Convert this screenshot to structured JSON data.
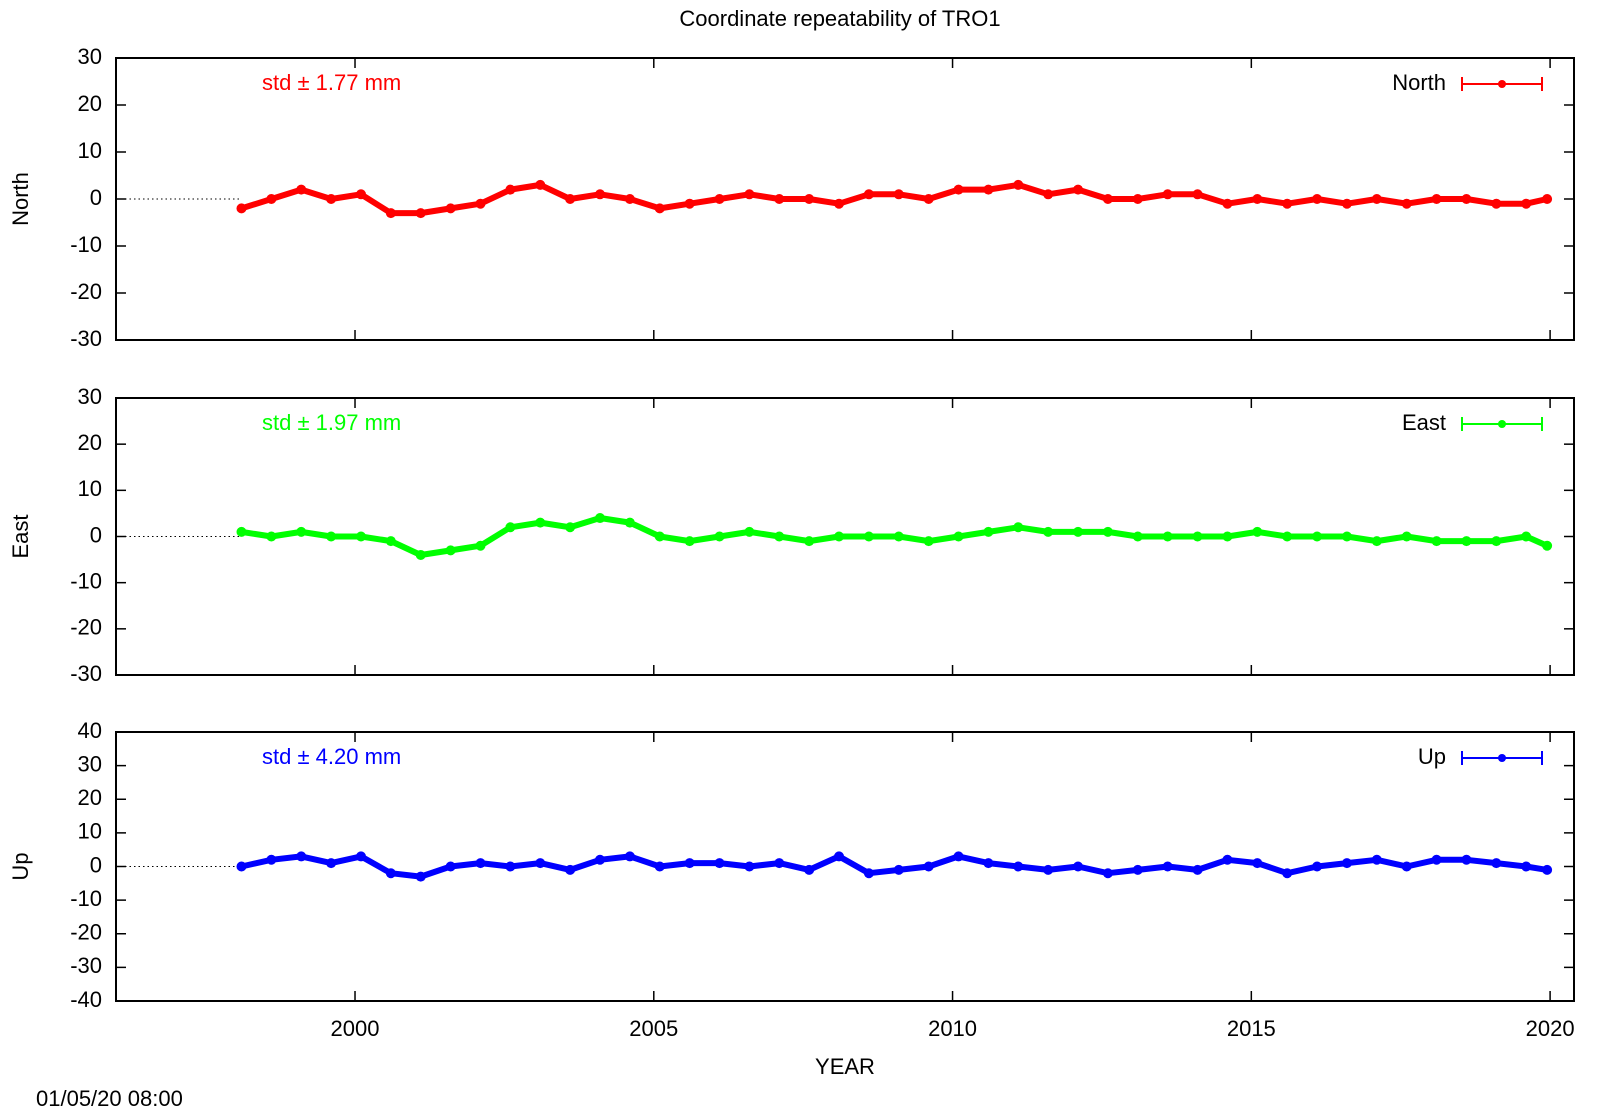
{
  "chart_data": [
    {
      "type": "line",
      "title": "Coordinate repeatability of TRO1",
      "ylabel": "North",
      "annotation": "std ± 1.77 mm",
      "x": [
        1998.1,
        1998.6,
        1999.1,
        1999.6,
        2000.1,
        2000.6,
        2001.1,
        2001.6,
        2002.1,
        2002.6,
        2003.1,
        2003.6,
        2004.1,
        2004.6,
        2005.1,
        2005.6,
        2006.1,
        2006.6,
        2007.1,
        2007.6,
        2008.1,
        2008.6,
        2009.1,
        2009.6,
        2010.1,
        2010.6,
        2011.1,
        2011.6,
        2012.1,
        2012.6,
        2013.1,
        2013.6,
        2014.1,
        2014.6,
        2015.1,
        2015.6,
        2016.1,
        2016.6,
        2017.1,
        2017.6,
        2018.1,
        2018.6,
        2019.1,
        2019.6,
        2019.95
      ],
      "series": [
        {
          "name": "North",
          "color": "#ff0000",
          "values": [
            -2,
            0,
            2,
            0,
            1,
            -3,
            -3,
            -2,
            -1,
            2,
            3,
            0,
            1,
            0,
            -2,
            -1,
            0,
            1,
            0,
            0,
            -1,
            1,
            1,
            0,
            2,
            2,
            3,
            1,
            2,
            0,
            0,
            1,
            1,
            -1,
            0,
            -1,
            0,
            -1,
            0,
            -1,
            0,
            0,
            -1,
            -1,
            0
          ]
        }
      ],
      "xlim": [
        1996,
        2020.4
      ],
      "xticks": [
        2000,
        2005,
        2010,
        2015,
        2020
      ],
      "ylim": [
        -30,
        30
      ],
      "yticks": [
        -30,
        -20,
        -10,
        0,
        10,
        20,
        30
      ],
      "legend": "upper right"
    },
    {
      "type": "line",
      "ylabel": "East",
      "annotation": "std ± 1.97 mm",
      "x": [
        1998.1,
        1998.6,
        1999.1,
        1999.6,
        2000.1,
        2000.6,
        2001.1,
        2001.6,
        2002.1,
        2002.6,
        2003.1,
        2003.6,
        2004.1,
        2004.6,
        2005.1,
        2005.6,
        2006.1,
        2006.6,
        2007.1,
        2007.6,
        2008.1,
        2008.6,
        2009.1,
        2009.6,
        2010.1,
        2010.6,
        2011.1,
        2011.6,
        2012.1,
        2012.6,
        2013.1,
        2013.6,
        2014.1,
        2014.6,
        2015.1,
        2015.6,
        2016.1,
        2016.6,
        2017.1,
        2017.6,
        2018.1,
        2018.6,
        2019.1,
        2019.6,
        2019.95
      ],
      "series": [
        {
          "name": "East",
          "color": "#00ff00",
          "values": [
            1,
            0,
            1,
            0,
            0,
            -1,
            -4,
            -3,
            -2,
            2,
            3,
            2,
            4,
            3,
            0,
            -1,
            0,
            1,
            0,
            -1,
            0,
            0,
            0,
            -1,
            0,
            1,
            2,
            1,
            1,
            1,
            0,
            0,
            0,
            0,
            1,
            0,
            0,
            0,
            -1,
            0,
            -1,
            -1,
            -1,
            0,
            -2
          ]
        }
      ],
      "xlim": [
        1996,
        2020.4
      ],
      "xticks": [
        2000,
        2005,
        2010,
        2015,
        2020
      ],
      "ylim": [
        -30,
        30
      ],
      "yticks": [
        -30,
        -20,
        -10,
        0,
        10,
        20,
        30
      ],
      "legend": "upper right"
    },
    {
      "type": "line",
      "ylabel": "Up",
      "annotation": "std ± 4.20 mm",
      "xlabel": "YEAR",
      "timestamp": "01/05/20 08:00",
      "x": [
        1998.1,
        1998.6,
        1999.1,
        1999.6,
        2000.1,
        2000.6,
        2001.1,
        2001.6,
        2002.1,
        2002.6,
        2003.1,
        2003.6,
        2004.1,
        2004.6,
        2005.1,
        2005.6,
        2006.1,
        2006.6,
        2007.1,
        2007.6,
        2008.1,
        2008.6,
        2009.1,
        2009.6,
        2010.1,
        2010.6,
        2011.1,
        2011.6,
        2012.1,
        2012.6,
        2013.1,
        2013.6,
        2014.1,
        2014.6,
        2015.1,
        2015.6,
        2016.1,
        2016.6,
        2017.1,
        2017.6,
        2018.1,
        2018.6,
        2019.1,
        2019.6,
        2019.95
      ],
      "series": [
        {
          "name": "Up",
          "color": "#0000ff",
          "values": [
            0,
            2,
            3,
            1,
            3,
            -2,
            -3,
            0,
            1,
            0,
            1,
            -1,
            2,
            3,
            0,
            1,
            1,
            0,
            1,
            -1,
            3,
            -2,
            -1,
            0,
            3,
            1,
            0,
            -1,
            0,
            -2,
            -1,
            0,
            -1,
            2,
            1,
            -2,
            0,
            1,
            2,
            0,
            2,
            2,
            1,
            0,
            -1
          ]
        }
      ],
      "xlim": [
        1996,
        2020.4
      ],
      "xticks": [
        2000,
        2005,
        2010,
        2015,
        2020
      ],
      "ylim": [
        -40,
        40
      ],
      "yticks": [
        -40,
        -30,
        -20,
        -10,
        0,
        10,
        20,
        30,
        40
      ],
      "legend": "upper right"
    }
  ]
}
